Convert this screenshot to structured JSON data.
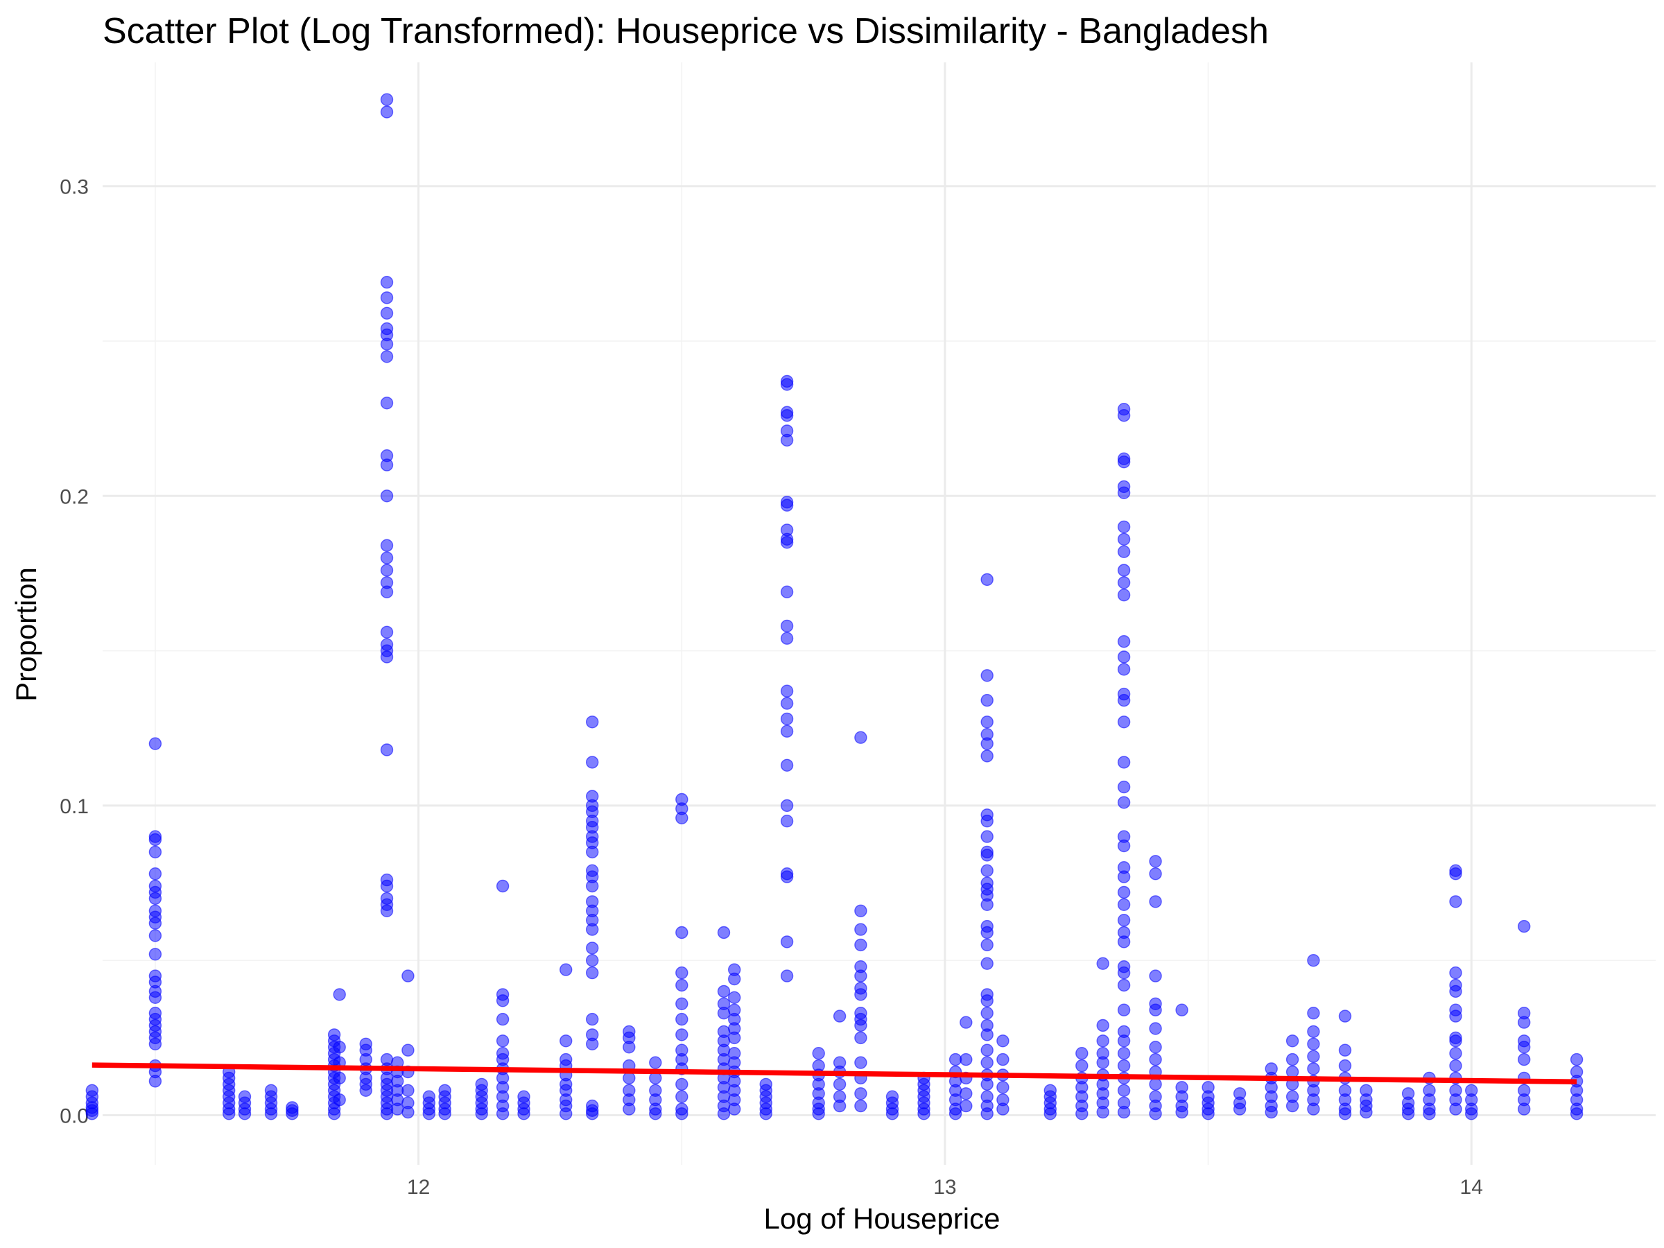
{
  "chart_data": {
    "type": "scatter",
    "title": "Scatter Plot (Log Transformed): Houseprice vs Dissimilarity - Bangladesh",
    "xlabel": "Log of Houseprice",
    "ylabel": "Proportion",
    "xlim": [
      11.4,
      14.35
    ],
    "ylim": [
      -0.016,
      0.34
    ],
    "x_ticks": [
      12,
      13,
      14
    ],
    "x_tick_labels": [
      "12",
      "13",
      "14"
    ],
    "y_ticks": [
      0.0,
      0.1,
      0.2,
      0.3
    ],
    "y_tick_labels": [
      "0.0",
      "0.1",
      "0.2",
      "0.3"
    ],
    "grid": true,
    "legend": "none",
    "point_color": "#0000ff",
    "line_color": "#ff0000",
    "trend_line": {
      "x": [
        11.38,
        14.2
      ],
      "y": [
        0.0162,
        0.0108
      ]
    },
    "series": [
      {
        "columns": [
          {
            "x": 11.38,
            "y": [
              0.0005,
              0.0015,
              0.0025,
              0.004,
              0.006,
              0.008
            ]
          },
          {
            "x": 11.5,
            "y": [
              0.12,
              0.09,
              0.089,
              0.085,
              0.078,
              0.074,
              0.072,
              0.07,
              0.066,
              0.064,
              0.062,
              0.058,
              0.052,
              0.045,
              0.043,
              0.04,
              0.038,
              0.033,
              0.031,
              0.029,
              0.027,
              0.025,
              0.023,
              0.016,
              0.014,
              0.011
            ]
          },
          {
            "x": 11.64,
            "y": [
              0.0005,
              0.002,
              0.004,
              0.006,
              0.008,
              0.01,
              0.012,
              0.014
            ]
          },
          {
            "x": 11.67,
            "y": [
              0.0005,
              0.002,
              0.004,
              0.006
            ]
          },
          {
            "x": 11.72,
            "y": [
              0.0005,
              0.002,
              0.004,
              0.006,
              0.008
            ]
          },
          {
            "x": 11.76,
            "y": [
              0.0005,
              0.0015,
              0.0025
            ]
          },
          {
            "x": 11.84,
            "y": [
              0.0005,
              0.002,
              0.004,
              0.006,
              0.008,
              0.01,
              0.012,
              0.014,
              0.016,
              0.018,
              0.02,
              0.022,
              0.024,
              0.026
            ]
          },
          {
            "x": 11.85,
            "y": [
              0.039,
              0.022,
              0.017,
              0.012,
              0.005
            ]
          },
          {
            "x": 11.9,
            "y": [
              0.008,
              0.01,
              0.012,
              0.015,
              0.018,
              0.021,
              0.023
            ]
          },
          {
            "x": 11.94,
            "y": [
              0.328,
              0.324,
              0.269,
              0.264,
              0.259,
              0.254,
              0.252,
              0.249,
              0.245,
              0.23,
              0.213,
              0.21,
              0.2,
              0.184,
              0.18,
              0.176,
              0.172,
              0.169,
              0.156,
              0.152,
              0.15,
              0.148,
              0.118,
              0.076,
              0.074,
              0.07,
              0.068,
              0.066,
              0.018,
              0.015,
              0.012,
              0.01,
              0.008,
              0.006,
              0.004,
              0.002,
              0.0005
            ]
          },
          {
            "x": 11.96,
            "y": [
              0.017,
              0.014,
              0.011,
              0.008,
              0.005,
              0.002
            ]
          },
          {
            "x": 11.98,
            "y": [
              0.045,
              0.021,
              0.014,
              0.008,
              0.004,
              0.001
            ]
          },
          {
            "x": 12.02,
            "y": [
              0.0005,
              0.002,
              0.004,
              0.006
            ]
          },
          {
            "x": 12.05,
            "y": [
              0.0005,
              0.002,
              0.004,
              0.006,
              0.008
            ]
          },
          {
            "x": 12.12,
            "y": [
              0.0005,
              0.002,
              0.004,
              0.006,
              0.008,
              0.01
            ]
          },
          {
            "x": 12.16,
            "y": [
              0.074,
              0.039,
              0.037,
              0.031,
              0.024,
              0.02,
              0.018,
              0.015,
              0.012,
              0.009,
              0.006,
              0.003,
              0.0005
            ]
          },
          {
            "x": 12.2,
            "y": [
              0.0005,
              0.002,
              0.004,
              0.006
            ]
          },
          {
            "x": 12.28,
            "y": [
              0.047,
              0.024,
              0.018,
              0.016,
              0.013,
              0.01,
              0.008,
              0.005,
              0.003,
              0.0005
            ]
          },
          {
            "x": 12.33,
            "y": [
              0.127,
              0.114,
              0.103,
              0.1,
              0.098,
              0.095,
              0.093,
              0.09,
              0.088,
              0.085,
              0.079,
              0.077,
              0.074,
              0.069,
              0.066,
              0.063,
              0.06,
              0.054,
              0.05,
              0.046,
              0.031,
              0.026,
              0.023,
              0.003,
              0.0015,
              0.0005
            ]
          },
          {
            "x": 12.4,
            "y": [
              0.027,
              0.025,
              0.022,
              0.016,
              0.012,
              0.008,
              0.005,
              0.002
            ]
          },
          {
            "x": 12.45,
            "y": [
              0.017,
              0.012,
              0.008,
              0.005,
              0.002,
              0.0005
            ]
          },
          {
            "x": 12.5,
            "y": [
              0.102,
              0.099,
              0.096,
              0.059,
              0.046,
              0.042,
              0.036,
              0.031,
              0.026,
              0.021,
              0.018,
              0.015,
              0.01,
              0.006,
              0.002,
              0.0005
            ]
          },
          {
            "x": 12.58,
            "y": [
              0.059,
              0.04,
              0.036,
              0.033,
              0.027,
              0.024,
              0.021,
              0.018,
              0.015,
              0.012,
              0.009,
              0.006,
              0.003,
              0.0005
            ]
          },
          {
            "x": 12.6,
            "y": [
              0.047,
              0.044,
              0.038,
              0.034,
              0.031,
              0.028,
              0.025,
              0.02,
              0.017,
              0.014,
              0.011,
              0.008,
              0.005,
              0.002
            ]
          },
          {
            "x": 12.66,
            "y": [
              0.0005,
              0.002,
              0.004,
              0.006,
              0.008,
              0.01
            ]
          },
          {
            "x": 12.7,
            "y": [
              0.237,
              0.236,
              0.227,
              0.226,
              0.221,
              0.218,
              0.198,
              0.197,
              0.189,
              0.186,
              0.185,
              0.169,
              0.158,
              0.154,
              0.137,
              0.133,
              0.128,
              0.124,
              0.113,
              0.1,
              0.095,
              0.078,
              0.077,
              0.056,
              0.045
            ]
          },
          {
            "x": 12.76,
            "y": [
              0.02,
              0.016,
              0.013,
              0.01,
              0.007,
              0.004,
              0.002,
              0.0005
            ]
          },
          {
            "x": 12.8,
            "y": [
              0.032,
              0.017,
              0.014,
              0.01,
              0.006,
              0.003
            ]
          },
          {
            "x": 12.84,
            "y": [
              0.122,
              0.066,
              0.06,
              0.055,
              0.048,
              0.045,
              0.041,
              0.039,
              0.033,
              0.031,
              0.029,
              0.025,
              0.017,
              0.012,
              0.007,
              0.003
            ]
          },
          {
            "x": 12.9,
            "y": [
              0.0005,
              0.002,
              0.004,
              0.006
            ]
          },
          {
            "x": 12.96,
            "y": [
              0.0005,
              0.002,
              0.004,
              0.006,
              0.008,
              0.01,
              0.012
            ]
          },
          {
            "x": 13.02,
            "y": [
              0.018,
              0.014,
              0.011,
              0.008,
              0.005,
              0.002,
              0.0005
            ]
          },
          {
            "x": 13.04,
            "y": [
              0.03,
              0.018,
              0.012,
              0.007,
              0.003
            ]
          },
          {
            "x": 13.08,
            "y": [
              0.173,
              0.142,
              0.134,
              0.127,
              0.123,
              0.12,
              0.116,
              0.097,
              0.095,
              0.09,
              0.085,
              0.084,
              0.079,
              0.075,
              0.073,
              0.071,
              0.068,
              0.061,
              0.059,
              0.055,
              0.049,
              0.039,
              0.037,
              0.033,
              0.029,
              0.026,
              0.021,
              0.017,
              0.013,
              0.01,
              0.006,
              0.003,
              0.0005
            ]
          },
          {
            "x": 13.11,
            "y": [
              0.024,
              0.018,
              0.013,
              0.009,
              0.005,
              0.002
            ]
          },
          {
            "x": 13.2,
            "y": [
              0.0005,
              0.002,
              0.004,
              0.006,
              0.008
            ]
          },
          {
            "x": 13.26,
            "y": [
              0.02,
              0.016,
              0.012,
              0.009,
              0.006,
              0.003,
              0.0005
            ]
          },
          {
            "x": 13.3,
            "y": [
              0.049,
              0.029,
              0.024,
              0.02,
              0.017,
              0.013,
              0.01,
              0.007,
              0.004,
              0.001
            ]
          },
          {
            "x": 13.34,
            "y": [
              0.228,
              0.226,
              0.212,
              0.211,
              0.203,
              0.201,
              0.19,
              0.186,
              0.182,
              0.176,
              0.172,
              0.168,
              0.153,
              0.148,
              0.144,
              0.136,
              0.134,
              0.127,
              0.114,
              0.106,
              0.101,
              0.09,
              0.087,
              0.08,
              0.077,
              0.072,
              0.068,
              0.063,
              0.059,
              0.056,
              0.048,
              0.046,
              0.042,
              0.034,
              0.027,
              0.024,
              0.02,
              0.016,
              0.012,
              0.008,
              0.004,
              0.001
            ]
          },
          {
            "x": 13.4,
            "y": [
              0.082,
              0.078,
              0.069,
              0.045,
              0.036,
              0.034,
              0.028,
              0.022,
              0.018,
              0.014,
              0.01,
              0.006,
              0.003,
              0.0005
            ]
          },
          {
            "x": 13.45,
            "y": [
              0.034,
              0.009,
              0.006,
              0.003,
              0.001
            ]
          },
          {
            "x": 13.5,
            "y": [
              0.009,
              0.006,
              0.004,
              0.002,
              0.0005
            ]
          },
          {
            "x": 13.56,
            "y": [
              0.007,
              0.004,
              0.002
            ]
          },
          {
            "x": 13.62,
            "y": [
              0.015,
              0.012,
              0.009,
              0.006,
              0.003,
              0.001
            ]
          },
          {
            "x": 13.66,
            "y": [
              0.024,
              0.018,
              0.014,
              0.01,
              0.006,
              0.003
            ]
          },
          {
            "x": 13.7,
            "y": [
              0.05,
              0.033,
              0.027,
              0.023,
              0.019,
              0.015,
              0.011,
              0.008,
              0.005,
              0.002
            ]
          },
          {
            "x": 13.76,
            "y": [
              0.032,
              0.021,
              0.016,
              0.012,
              0.008,
              0.005,
              0.002,
              0.0005
            ]
          },
          {
            "x": 13.8,
            "y": [
              0.008,
              0.005,
              0.003,
              0.001
            ]
          },
          {
            "x": 13.88,
            "y": [
              0.007,
              0.004,
              0.002,
              0.0005
            ]
          },
          {
            "x": 13.92,
            "y": [
              0.012,
              0.008,
              0.005,
              0.002,
              0.0005
            ]
          },
          {
            "x": 13.97,
            "y": [
              0.079,
              0.078,
              0.069,
              0.046,
              0.042,
              0.04,
              0.034,
              0.032,
              0.025,
              0.024,
              0.02,
              0.016,
              0.012,
              0.008,
              0.005,
              0.002
            ]
          },
          {
            "x": 14.0,
            "y": [
              0.008,
              0.005,
              0.002,
              0.0005
            ]
          },
          {
            "x": 14.1,
            "y": [
              0.061,
              0.033,
              0.03,
              0.024,
              0.022,
              0.018,
              0.012,
              0.008,
              0.005,
              0.002
            ]
          },
          {
            "x": 14.2,
            "y": [
              0.018,
              0.014,
              0.011,
              0.008,
              0.005,
              0.002,
              0.0005
            ]
          }
        ]
      }
    ]
  }
}
